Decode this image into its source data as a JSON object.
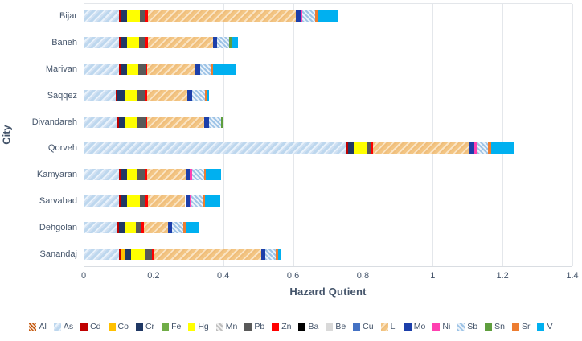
{
  "chart_data": {
    "type": "bar",
    "orientation": "horizontal-stacked",
    "title": "",
    "xlabel": "Hazard Qutient",
    "ylabel": "City",
    "xlim": [
      0,
      1.4
    ],
    "xticks": [
      0,
      0.2,
      0.4,
      0.6,
      0.8,
      1,
      1.2,
      1.4
    ],
    "xtick_labels": [
      "0",
      "0.2",
      "0.4",
      "0.6",
      "0.8",
      "1",
      "1.2",
      "1.4"
    ],
    "grid": "vertical-light",
    "legend_position": "bottom",
    "categories": [
      "Bijar",
      "Baneh",
      "Marivan",
      "Saqqez",
      "Divandareh",
      "Qorveh",
      "Kamyaran",
      "Sarvabad",
      "Dehgolan",
      "Sanandaj"
    ],
    "series": [
      {
        "name": "Al",
        "color": "#C55A11",
        "pattern": "hatch-orange",
        "values": [
          0,
          0,
          0,
          0,
          0,
          0,
          0,
          0,
          0,
          0
        ]
      },
      {
        "name": "As",
        "color": "#BDD7EE",
        "pattern": "mottle-blue",
        "values": [
          0.1,
          0.1,
          0.1,
          0.09,
          0.095,
          0.75,
          0.1,
          0.1,
          0.095,
          0.1
        ]
      },
      {
        "name": "Cd",
        "color": "#C00000",
        "pattern": "solid",
        "values": [
          0.005,
          0.005,
          0.005,
          0.005,
          0.005,
          0.005,
          0.005,
          0.005,
          0.005,
          0.003
        ]
      },
      {
        "name": "Co",
        "color": "#FFC000",
        "pattern": "solid",
        "values": [
          0,
          0,
          0,
          0,
          0,
          0,
          0,
          0,
          0,
          0.014
        ]
      },
      {
        "name": "Cr",
        "color": "#203864",
        "pattern": "solid",
        "values": [
          0.016,
          0.016,
          0.018,
          0.02,
          0.018,
          0.016,
          0.016,
          0.018,
          0.018,
          0.016
        ]
      },
      {
        "name": "Fe",
        "color": "#70AD47",
        "pattern": "solid",
        "values": [
          0,
          0,
          0,
          0,
          0,
          0,
          0,
          0,
          0,
          0
        ]
      },
      {
        "name": "Hg",
        "color": "#FFFF00",
        "pattern": "solid",
        "values": [
          0.037,
          0.035,
          0.032,
          0.035,
          0.035,
          0.037,
          0.032,
          0.035,
          0.03,
          0.039
        ]
      },
      {
        "name": "Mn",
        "color": "#BFBFBF",
        "pattern": "hatch-gray",
        "values": [
          0,
          0,
          0,
          0,
          0,
          0,
          0,
          0,
          0,
          0
        ]
      },
      {
        "name": "Pb",
        "color": "#595959",
        "pattern": "solid",
        "values": [
          0.018,
          0.018,
          0.023,
          0.023,
          0.025,
          0.014,
          0.021,
          0.018,
          0.016,
          0.021
        ]
      },
      {
        "name": "Zn",
        "color": "#FF0000",
        "pattern": "solid",
        "values": [
          0.005,
          0.009,
          0.002,
          0.007,
          0.002,
          0.005,
          0.005,
          0.007,
          0.007,
          0.007
        ]
      },
      {
        "name": "Ba",
        "color": "#000000",
        "pattern": "solid",
        "values": [
          0,
          0,
          0,
          0,
          0,
          0,
          0,
          0,
          0,
          0
        ]
      },
      {
        "name": "Be",
        "color": "#D9D9D9",
        "pattern": "solid",
        "values": [
          0,
          0,
          0,
          0,
          0,
          0,
          0,
          0,
          0,
          0
        ]
      },
      {
        "name": "Cu",
        "color": "#4472C4",
        "pattern": "solid",
        "values": [
          0,
          0,
          0,
          0,
          0,
          0,
          0,
          0,
          0,
          0
        ]
      },
      {
        "name": "Li",
        "color": "#F3C583",
        "pattern": "mottle-tan",
        "values": [
          0.425,
          0.185,
          0.136,
          0.115,
          0.164,
          0.277,
          0.113,
          0.106,
          0.069,
          0.307
        ]
      },
      {
        "name": "Mo",
        "color": "#1C3FAA",
        "pattern": "solid",
        "values": [
          0.014,
          0.012,
          0.016,
          0.014,
          0.012,
          0.012,
          0.009,
          0.012,
          0.012,
          0.012
        ]
      },
      {
        "name": "Ni",
        "color": "#FF40B0",
        "pattern": "solid",
        "values": [
          0.005,
          0,
          0,
          0,
          0,
          0.009,
          0.007,
          0.005,
          0,
          0
        ]
      },
      {
        "name": "Sb",
        "color": "#9DC3E6",
        "pattern": "hatch-lightblue",
        "values": [
          0.035,
          0.035,
          0.03,
          0.037,
          0.035,
          0.032,
          0.035,
          0.032,
          0.032,
          0.03
        ]
      },
      {
        "name": "Sn",
        "color": "#5F9E3E",
        "pattern": "solid",
        "values": [
          0,
          0.007,
          0,
          0,
          0.004,
          0,
          0,
          0,
          0,
          0
        ]
      },
      {
        "name": "Sr",
        "color": "#ED7D31",
        "pattern": "solid",
        "values": [
          0.008,
          0,
          0.007,
          0.007,
          0,
          0.007,
          0.005,
          0.007,
          0.007,
          0.007
        ]
      },
      {
        "name": "V",
        "color": "#00B0F0",
        "pattern": "solid",
        "values": [
          0.058,
          0.018,
          0.067,
          0.005,
          0.004,
          0.065,
          0.044,
          0.044,
          0.037,
          0.005
        ]
      }
    ]
  }
}
